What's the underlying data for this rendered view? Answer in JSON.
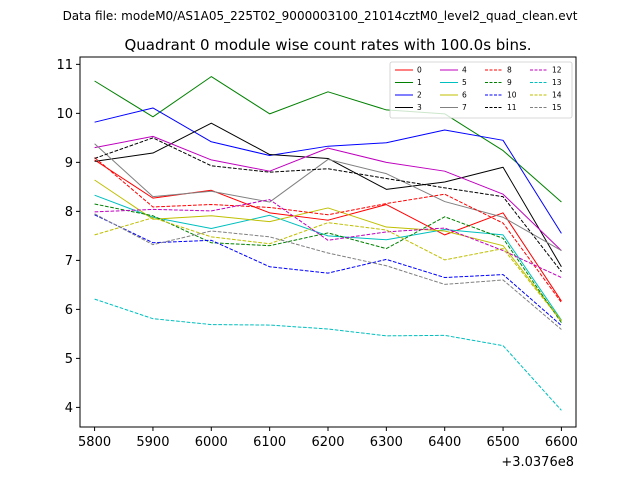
{
  "chart_data": {
    "type": "line",
    "suptitle": "Data file: modeM0/AS1A05_225T02_9000003100_21014cztM0_level2_quad_clean.evt",
    "title": "Quadrant 0 module wise count rates with 100.0s bins.",
    "xlabel": "",
    "ylabel": "",
    "x_offset_label": "+3.0376e8",
    "x": [
      5800,
      5900,
      6000,
      6100,
      6200,
      6300,
      6400,
      6500,
      6600
    ],
    "xlim": [
      5775,
      6625
    ],
    "ylim": [
      3.6,
      11.15
    ],
    "xticks": [
      "5800",
      "5900",
      "6000",
      "6100",
      "6200",
      "6300",
      "6400",
      "6500",
      "6600"
    ],
    "yticks": [
      "4",
      "5",
      "6",
      "7",
      "8",
      "9",
      "10",
      "11"
    ],
    "grid": false,
    "legend_position": "top-right",
    "series": [
      {
        "name": "0",
        "color": "#ff0000",
        "dash": "solid",
        "values": [
          9.05,
          8.27,
          8.43,
          7.97,
          7.82,
          8.14,
          7.52,
          7.97,
          6.17
        ]
      },
      {
        "name": "1",
        "color": "#008000",
        "dash": "solid",
        "values": [
          10.66,
          9.93,
          10.75,
          9.99,
          10.44,
          10.07,
          9.99,
          9.24,
          8.19
        ]
      },
      {
        "name": "2",
        "color": "#0000ff",
        "dash": "solid",
        "values": [
          9.82,
          10.11,
          9.42,
          9.14,
          9.33,
          9.4,
          9.66,
          9.45,
          7.55
        ]
      },
      {
        "name": "3",
        "color": "#000000",
        "dash": "solid",
        "values": [
          9.02,
          9.19,
          9.8,
          9.16,
          9.08,
          8.45,
          8.6,
          8.9,
          6.87
        ]
      },
      {
        "name": "4",
        "color": "#bf00bf",
        "dash": "solid",
        "values": [
          9.3,
          9.53,
          9.05,
          8.82,
          9.29,
          9.0,
          8.82,
          8.35,
          7.2
        ]
      },
      {
        "name": "5",
        "color": "#00bfbf",
        "dash": "solid",
        "values": [
          8.33,
          7.88,
          7.65,
          7.92,
          7.5,
          7.42,
          7.63,
          7.52,
          5.78
        ]
      },
      {
        "name": "6",
        "color": "#bfbf00",
        "dash": "solid",
        "values": [
          8.64,
          7.84,
          7.91,
          7.79,
          8.07,
          7.68,
          7.6,
          7.3,
          5.77
        ]
      },
      {
        "name": "7",
        "color": "#808080",
        "dash": "solid",
        "values": [
          9.38,
          8.3,
          8.41,
          8.19,
          9.06,
          8.77,
          8.2,
          7.88,
          7.2
        ]
      },
      {
        "name": "8",
        "color": "#ff0000",
        "dash": "dashed",
        "values": [
          9.1,
          8.09,
          8.14,
          8.08,
          7.93,
          8.16,
          8.35,
          7.76,
          6.14
        ]
      },
      {
        "name": "9",
        "color": "#008000",
        "dash": "dashed",
        "values": [
          8.15,
          7.91,
          7.36,
          7.3,
          7.56,
          7.24,
          7.89,
          7.45,
          5.73
        ]
      },
      {
        "name": "10",
        "color": "#0000ff",
        "dash": "dashed",
        "values": [
          7.93,
          7.36,
          7.41,
          6.87,
          6.74,
          7.02,
          6.65,
          6.71,
          5.67
        ]
      },
      {
        "name": "11",
        "color": "#000000",
        "dash": "dashed",
        "values": [
          9.08,
          9.5,
          8.93,
          8.8,
          8.87,
          8.67,
          8.48,
          8.3,
          6.77
        ]
      },
      {
        "name": "12",
        "color": "#bf00bf",
        "dash": "dashed",
        "values": [
          7.99,
          8.04,
          8.01,
          8.24,
          7.41,
          7.58,
          7.66,
          7.2,
          6.65
        ]
      },
      {
        "name": "13",
        "color": "#00bfbf",
        "dash": "dashed",
        "values": [
          6.21,
          5.81,
          5.69,
          5.68,
          5.6,
          5.46,
          5.47,
          5.26,
          3.94
        ]
      },
      {
        "name": "14",
        "color": "#bfbf00",
        "dash": "dashed",
        "values": [
          7.52,
          7.87,
          7.48,
          7.34,
          7.77,
          7.62,
          7.01,
          7.24,
          5.76
        ]
      },
      {
        "name": "15",
        "color": "#808080",
        "dash": "dashed",
        "values": [
          7.95,
          7.32,
          7.6,
          7.48,
          7.15,
          6.89,
          6.51,
          6.6,
          5.59
        ]
      }
    ]
  }
}
